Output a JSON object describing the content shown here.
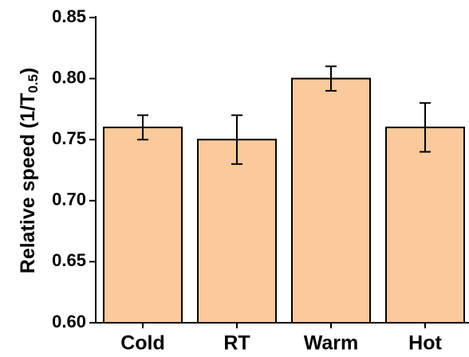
{
  "chart_data": {
    "type": "bar",
    "y_label": [
      "Relative speed (1/T",
      "0.5",
      ")"
    ],
    "categories": [
      "Cold",
      "RT",
      "Warm",
      "Hot"
    ],
    "values": [
      0.76,
      0.75,
      0.8,
      0.76
    ],
    "errors": [
      0.01,
      0.02,
      0.01,
      0.02
    ],
    "color": "#fac99c",
    "ylim": [
      0.6,
      0.85
    ],
    "yticks": [
      {
        "value": 0.6,
        "label": "0.60"
      },
      0.65,
      {
        "value": 0.7,
        "label": "0.70"
      },
      0.75,
      {
        "value": 0.8,
        "label": "0.80"
      },
      0.85
    ]
  }
}
